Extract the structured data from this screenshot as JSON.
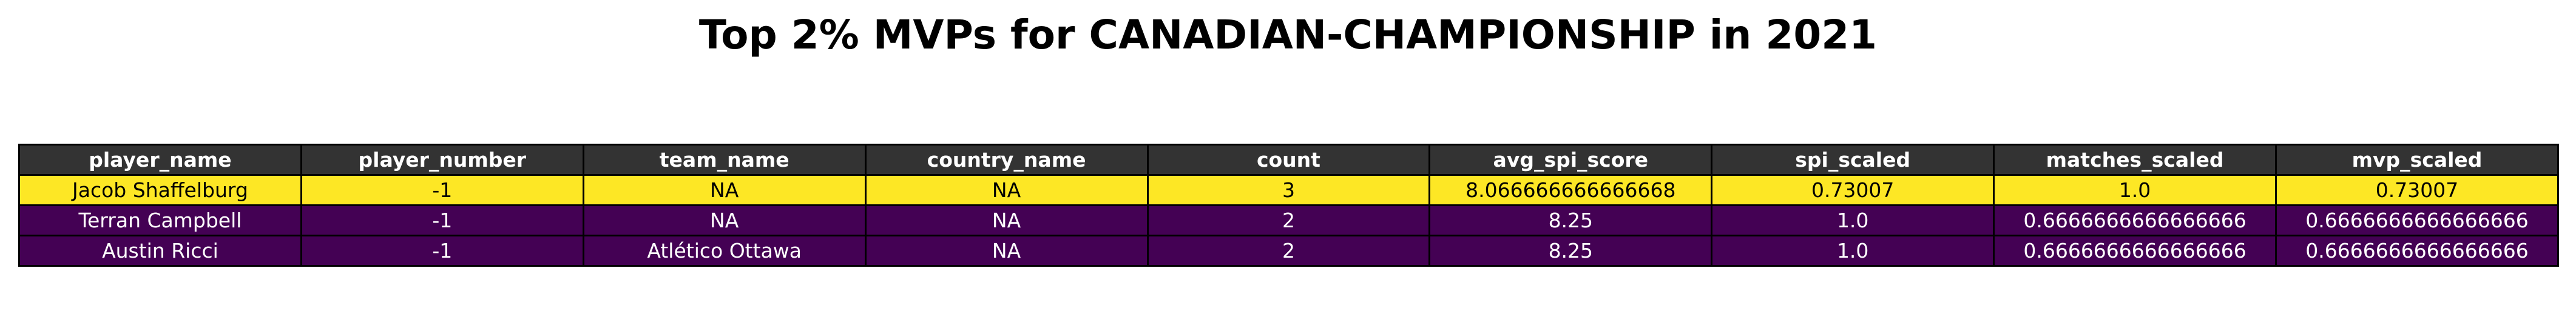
{
  "title": "Top 2% MVPs for CANADIAN-CHAMPIONSHIP in 2021",
  "colors": {
    "header_bg": "#333333",
    "header_text": "#ffffff",
    "border": "#000000",
    "row_highlight_bg": "#fde725",
    "row_highlight_text": "#000000",
    "row_default_bg": "#440154",
    "row_default_text": "#ffffff"
  },
  "chart_data": {
    "type": "table",
    "title": "Top 2% MVPs for CANADIAN-CHAMPIONSHIP in 2021",
    "columns": [
      "player_name",
      "player_number",
      "team_name",
      "country_name",
      "count",
      "avg_spi_score",
      "spi_scaled",
      "matches_scaled",
      "mvp_scaled"
    ],
    "rows": [
      {
        "highlight": true,
        "cells": [
          "Jacob Shaffelburg",
          "-1",
          "NA",
          "NA",
          "3",
          "8.066666666666668",
          "0.73007",
          "1.0",
          "0.73007"
        ]
      },
      {
        "highlight": false,
        "cells": [
          "Terran Campbell",
          "-1",
          "NA",
          "NA",
          "2",
          "8.25",
          "1.0",
          "0.6666666666666666",
          "0.6666666666666666"
        ]
      },
      {
        "highlight": false,
        "cells": [
          "Austin Ricci",
          "-1",
          "Atlético Ottawa",
          "NA",
          "2",
          "8.25",
          "1.0",
          "0.6666666666666666",
          "0.6666666666666666"
        ]
      }
    ]
  }
}
